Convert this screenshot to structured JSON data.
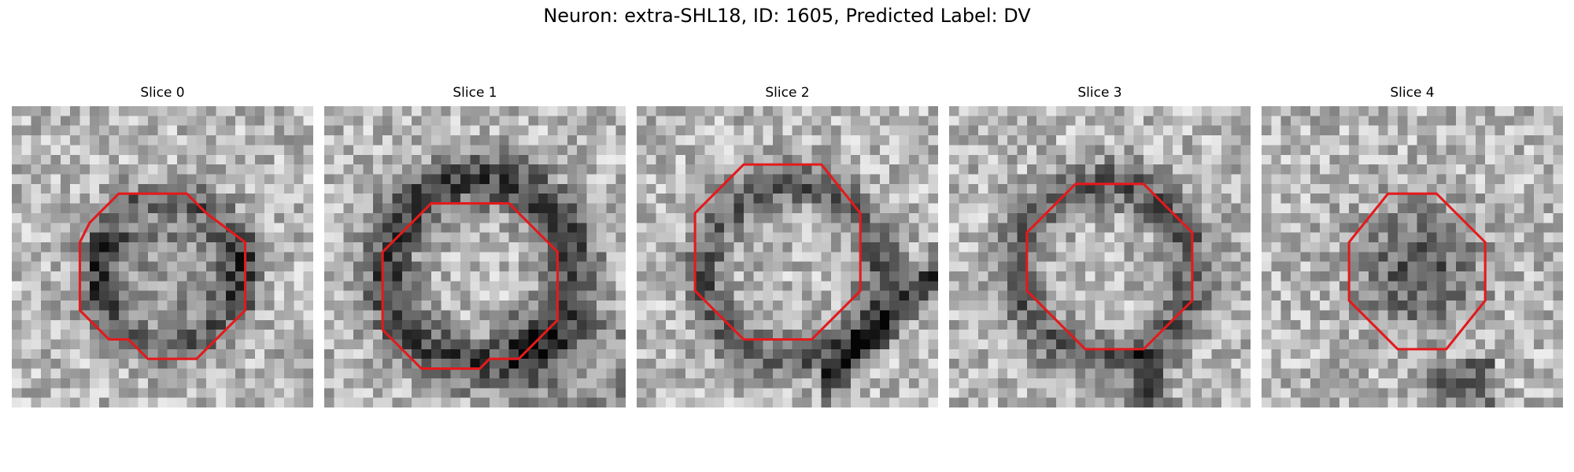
{
  "figure": {
    "title": "Neuron: extra-SHL18, ID: 1605, Predicted Label: DV"
  },
  "style": {
    "roi_color": "#e31a1c",
    "colormap": "gray"
  },
  "panels": [
    {
      "title": "Slice 0",
      "seed": 11,
      "dark": "ring-lower",
      "roi": [
        [
          8,
          12
        ],
        [
          11,
          9
        ],
        [
          18,
          9
        ],
        [
          20,
          11
        ],
        [
          24,
          14
        ],
        [
          24,
          21
        ],
        [
          19,
          26
        ],
        [
          14,
          26
        ],
        [
          12,
          24
        ],
        [
          10,
          24
        ],
        [
          7,
          21
        ],
        [
          7,
          14
        ]
      ]
    },
    {
      "title": "Slice 1",
      "seed": 23,
      "dark": "ring-thick",
      "roi": [
        [
          10,
          11
        ],
        [
          11,
          10
        ],
        [
          19,
          10
        ],
        [
          20,
          11
        ],
        [
          24,
          15
        ],
        [
          24,
          22
        ],
        [
          20,
          26
        ],
        [
          17,
          26
        ],
        [
          16,
          27
        ],
        [
          10,
          27
        ],
        [
          6,
          23
        ],
        [
          6,
          15
        ]
      ]
    },
    {
      "title": "Slice 2",
      "seed": 37,
      "dark": "ring-diag",
      "roi": [
        [
          10,
          7
        ],
        [
          11,
          6
        ],
        [
          19,
          6
        ],
        [
          23,
          11
        ],
        [
          23,
          19
        ],
        [
          18,
          24
        ],
        [
          11,
          24
        ],
        [
          6,
          19
        ],
        [
          6,
          11
        ]
      ]
    },
    {
      "title": "Slice 3",
      "seed": 51,
      "dark": "ring-top",
      "roi": [
        [
          13,
          8
        ],
        [
          20,
          8
        ],
        [
          25,
          13
        ],
        [
          25,
          20
        ],
        [
          20,
          25
        ],
        [
          14,
          25
        ],
        [
          8,
          19
        ],
        [
          8,
          13
        ]
      ]
    },
    {
      "title": "Slice 4",
      "seed": 67,
      "dark": "blob-center",
      "roi": [
        [
          13,
          9
        ],
        [
          18,
          9
        ],
        [
          23,
          14
        ],
        [
          23,
          20
        ],
        [
          19,
          25
        ],
        [
          14,
          25
        ],
        [
          9,
          20
        ],
        [
          9,
          14
        ]
      ]
    }
  ]
}
